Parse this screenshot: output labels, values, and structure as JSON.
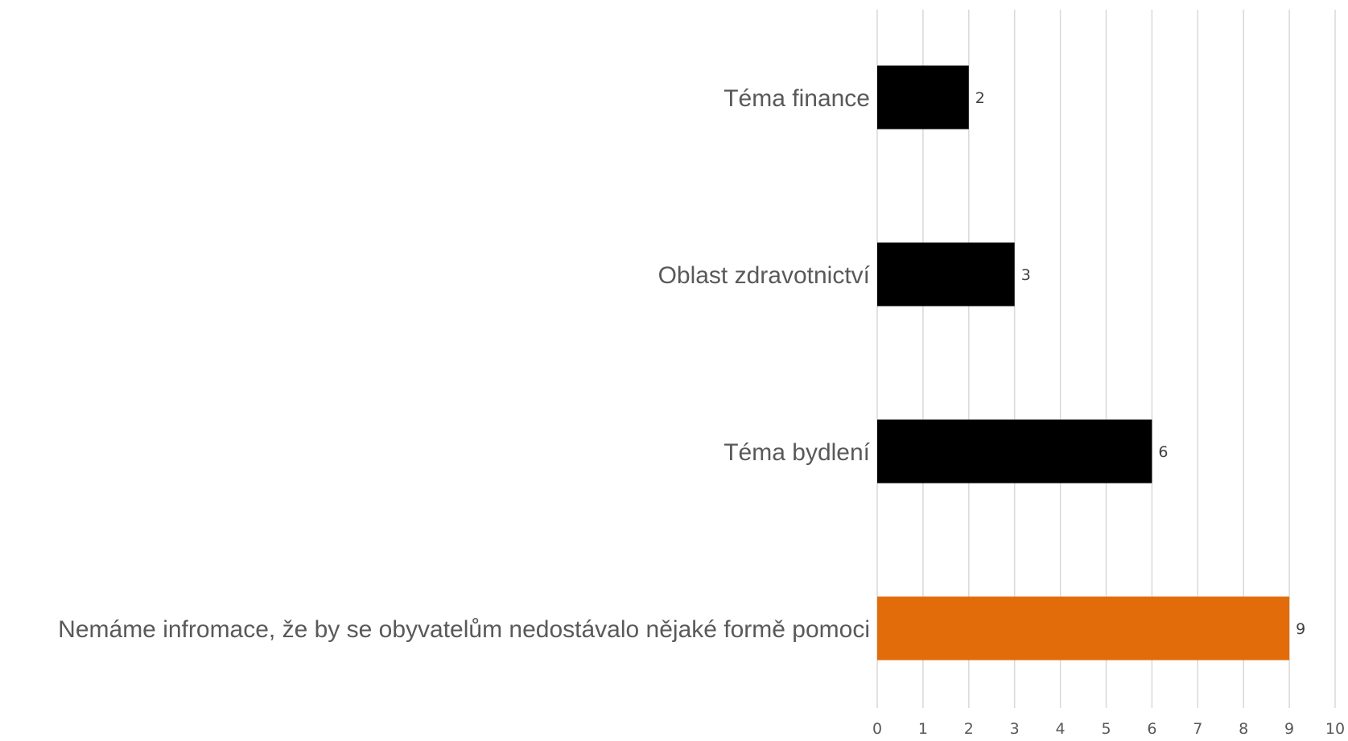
{
  "chart_data": {
    "type": "bar",
    "orientation": "horizontal",
    "title": "",
    "xlabel": "",
    "ylabel": "",
    "categories": [
      "Téma finance",
      "Oblast zdravotnictví",
      "Téma bydlení",
      "Nemáme infromace, že by se obyvatelům nedostávalo nějaké formě pomoci"
    ],
    "values": [
      2,
      3,
      6,
      9
    ],
    "bar_colors": [
      "#000000",
      "#000000",
      "#000000",
      "#E36C0A"
    ],
    "xlim": [
      0,
      10
    ],
    "xticks": [
      "0",
      "1",
      "2",
      "3",
      "4",
      "5",
      "6",
      "7",
      "8",
      "9",
      "10"
    ],
    "grid": true,
    "legend": "none",
    "data_labels": [
      "2",
      "3",
      "6",
      "9"
    ]
  }
}
